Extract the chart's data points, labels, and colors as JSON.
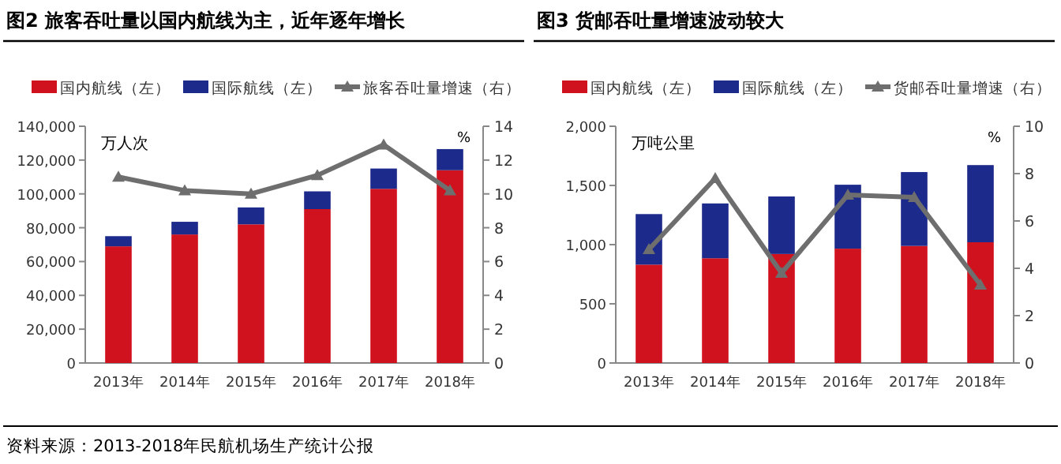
{
  "chart_data": [
    {
      "type": "bar",
      "title": "图2 旅客吞吐量以国内航线为主，近年逐年增长",
      "ylabel": "万人次",
      "y2label": "%",
      "stacked": true,
      "legend": "top",
      "categories": [
        "2013年",
        "2014年",
        "2015年",
        "2016年",
        "2017年",
        "2018年"
      ],
      "series": [
        {
          "name": "国内航线（左）",
          "color": "#d0121e",
          "values": [
            69000,
            76000,
            82000,
            91000,
            103000,
            114000
          ]
        },
        {
          "name": "国际航线（左）",
          "color": "#1c2a8c",
          "values": [
            6000,
            7500,
            10000,
            10500,
            12000,
            12500
          ]
        },
        {
          "name": "旅客吞吐量增速（右）",
          "type": "line",
          "axis": "y2",
          "marker": "triangle",
          "color": "#6e6e6e",
          "values": [
            11.0,
            10.2,
            10.0,
            11.1,
            12.9,
            10.2
          ]
        }
      ],
      "ylim": [
        0,
        140000
      ],
      "yticks": [
        {
          "value": 0,
          "label": "0"
        },
        {
          "value": 20000,
          "label": "20,000"
        },
        {
          "value": 40000,
          "label": "40,000"
        },
        {
          "value": 60000,
          "label": "60,000"
        },
        {
          "value": 80000,
          "label": "80,000"
        },
        {
          "value": 100000,
          "label": "100,000"
        },
        {
          "value": 120000,
          "label": "120,000"
        },
        {
          "value": 140000,
          "label": "140,000"
        }
      ],
      "y2lim": [
        0,
        14
      ],
      "y2ticks": [
        0,
        2,
        4,
        6,
        8,
        10,
        12,
        14
      ],
      "annotations": [
        "资料来源：2013-2018年民航机场生产统计公报"
      ]
    },
    {
      "type": "bar",
      "title": "图3 货邮吞吐量增速波动较大",
      "ylabel": "万吨公里",
      "y2label": "%",
      "stacked": true,
      "legend": "top",
      "categories": [
        "2013年",
        "2014年",
        "2015年",
        "2016年",
        "2017年",
        "2018年"
      ],
      "series": [
        {
          "name": "国内航线（左）",
          "color": "#d0121e",
          "values": [
            831,
            885,
            921,
            966,
            989,
            1020
          ]
        },
        {
          "name": "国际航线（左）",
          "color": "#1c2a8c",
          "values": [
            427,
            463,
            486,
            540,
            624,
            652
          ]
        },
        {
          "name": "货邮吞吐量增速（右）",
          "type": "line",
          "axis": "y2",
          "marker": "triangle",
          "color": "#6e6e6e",
          "values": [
            4.8,
            7.8,
            3.8,
            7.1,
            7.0,
            3.3
          ]
        }
      ],
      "ylim": [
        0,
        2000
      ],
      "yticks": [
        {
          "value": 0,
          "label": "0"
        },
        {
          "value": 500,
          "label": "500"
        },
        {
          "value": 1000,
          "label": "1,000"
        },
        {
          "value": 1500,
          "label": "1,500"
        },
        {
          "value": 2000,
          "label": "2,000"
        }
      ],
      "y2lim": [
        0,
        10
      ],
      "y2ticks": [
        0,
        2,
        4,
        6,
        8,
        10
      ]
    }
  ]
}
